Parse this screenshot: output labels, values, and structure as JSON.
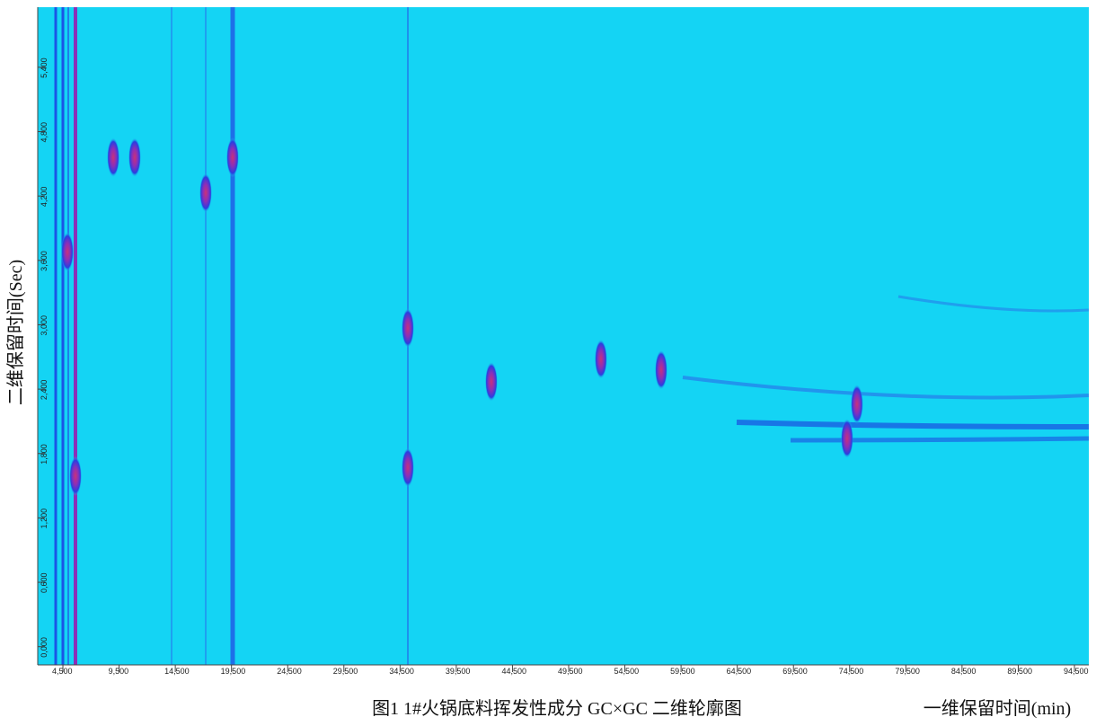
{
  "chart_data": {
    "type": "contour",
    "title": "图1 1#火锅底料挥发性成分 GC×GC 二维轮廓图",
    "x_label": "一维保留时间(min)",
    "y_label": "二维保留时间(Sec)",
    "xlim": [
      2.26,
      95.78
    ],
    "ylim": [
      -0.17,
      5.96
    ],
    "xticks": [
      {
        "value": 4.5,
        "label": "4,500"
      },
      {
        "value": 9.5,
        "label": "9,500"
      },
      {
        "value": 14.5,
        "label": "14,500"
      },
      {
        "value": 19.5,
        "label": "19,500"
      },
      {
        "value": 24.5,
        "label": "24,500"
      },
      {
        "value": 29.5,
        "label": "29,500"
      },
      {
        "value": 34.5,
        "label": "34,500"
      },
      {
        "value": 39.5,
        "label": "39,500"
      },
      {
        "value": 44.5,
        "label": "44,500"
      },
      {
        "value": 49.5,
        "label": "49,500"
      },
      {
        "value": 54.5,
        "label": "54,500"
      },
      {
        "value": 59.5,
        "label": "59,500"
      },
      {
        "value": 64.5,
        "label": "64,500"
      },
      {
        "value": 69.5,
        "label": "69,500"
      },
      {
        "value": 74.5,
        "label": "74,500"
      },
      {
        "value": 79.5,
        "label": "79,500"
      },
      {
        "value": 84.5,
        "label": "84,500"
      },
      {
        "value": 89.5,
        "label": "89,500"
      },
      {
        "value": 94.5,
        "label": "94,500"
      }
    ],
    "yticks": [
      {
        "value": 0,
        "label": "0,000"
      },
      {
        "value": 0.6,
        "label": "0,600"
      },
      {
        "value": 1.2,
        "label": "1,200"
      },
      {
        "value": 1.8,
        "label": "1,800"
      },
      {
        "value": 2.4,
        "label": "2,400"
      },
      {
        "value": 3,
        "label": "3,000"
      },
      {
        "value": 3.6,
        "label": "3,600"
      },
      {
        "value": 4.2,
        "label": "4,200"
      },
      {
        "value": 4.8,
        "label": "4,800"
      },
      {
        "value": 5.4,
        "label": "5,400"
      }
    ],
    "background_color": "#14d4f4",
    "peaks": [
      {
        "x": 19.6,
        "y": 4.56
      },
      {
        "x": 17.21,
        "y": 4.23
      },
      {
        "x": 8.98,
        "y": 4.56
      },
      {
        "x": 10.89,
        "y": 4.56
      },
      {
        "x": 35.19,
        "y": 2.97
      },
      {
        "x": 35.19,
        "y": 1.67
      },
      {
        "x": 42.62,
        "y": 2.47
      },
      {
        "x": 57.73,
        "y": 2.58
      },
      {
        "x": 52.37,
        "y": 2.68
      },
      {
        "x": 75.15,
        "y": 2.26
      },
      {
        "x": 74.27,
        "y": 1.94
      },
      {
        "x": 5.62,
        "y": 1.59
      },
      {
        "x": 4.9,
        "y": 3.68
      }
    ]
  }
}
